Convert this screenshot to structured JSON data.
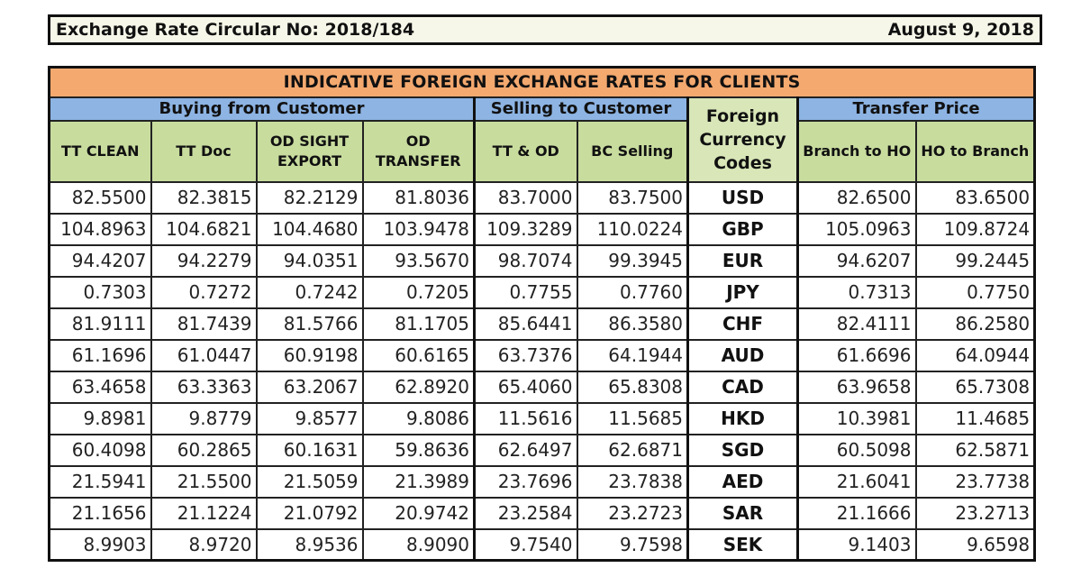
{
  "header": {
    "circular": "Exchange Rate Circular No: 2018/184",
    "date": "August 9, 2018"
  },
  "table": {
    "title": "INDICATIVE FOREIGN EXCHANGE RATES FOR CLIENTS",
    "groups": {
      "buying": "Buying from Customer",
      "selling": "Selling to Customer",
      "codes": "Foreign Currency Codes",
      "transfer": "Transfer Price"
    },
    "columns": {
      "tt_clean": "TT CLEAN",
      "tt_doc": "TT Doc",
      "od_sight_export": "OD SIGHT EXPORT",
      "od_transfer": "OD TRANSFER",
      "tt_od": "TT & OD",
      "bc_selling": "BC Selling",
      "branch_to_ho": "Branch to HO",
      "ho_to_branch": "HO to Branch"
    },
    "rows": [
      {
        "tt_clean": "82.5500",
        "tt_doc": "82.3815",
        "od_sight_export": "82.2129",
        "od_transfer": "81.8036",
        "tt_od": "83.7000",
        "bc_selling": "83.7500",
        "code": "USD",
        "branch_to_ho": "82.6500",
        "ho_to_branch": "83.6500"
      },
      {
        "tt_clean": "104.8963",
        "tt_doc": "104.6821",
        "od_sight_export": "104.4680",
        "od_transfer": "103.9478",
        "tt_od": "109.3289",
        "bc_selling": "110.0224",
        "code": "GBP",
        "branch_to_ho": "105.0963",
        "ho_to_branch": "109.8724"
      },
      {
        "tt_clean": "94.4207",
        "tt_doc": "94.2279",
        "od_sight_export": "94.0351",
        "od_transfer": "93.5670",
        "tt_od": "98.7074",
        "bc_selling": "99.3945",
        "code": "EUR",
        "branch_to_ho": "94.6207",
        "ho_to_branch": "99.2445"
      },
      {
        "tt_clean": "0.7303",
        "tt_doc": "0.7272",
        "od_sight_export": "0.7242",
        "od_transfer": "0.7205",
        "tt_od": "0.7755",
        "bc_selling": "0.7760",
        "code": "JPY",
        "branch_to_ho": "0.7313",
        "ho_to_branch": "0.7750"
      },
      {
        "tt_clean": "81.9111",
        "tt_doc": "81.7439",
        "od_sight_export": "81.5766",
        "od_transfer": "81.1705",
        "tt_od": "85.6441",
        "bc_selling": "86.3580",
        "code": "CHF",
        "branch_to_ho": "82.4111",
        "ho_to_branch": "86.2580"
      },
      {
        "tt_clean": "61.1696",
        "tt_doc": "61.0447",
        "od_sight_export": "60.9198",
        "od_transfer": "60.6165",
        "tt_od": "63.7376",
        "bc_selling": "64.1944",
        "code": "AUD",
        "branch_to_ho": "61.6696",
        "ho_to_branch": "64.0944"
      },
      {
        "tt_clean": "63.4658",
        "tt_doc": "63.3363",
        "od_sight_export": "63.2067",
        "od_transfer": "62.8920",
        "tt_od": "65.4060",
        "bc_selling": "65.8308",
        "code": "CAD",
        "branch_to_ho": "63.9658",
        "ho_to_branch": "65.7308"
      },
      {
        "tt_clean": "9.8981",
        "tt_doc": "9.8779",
        "od_sight_export": "9.8577",
        "od_transfer": "9.8086",
        "tt_od": "11.5616",
        "bc_selling": "11.5685",
        "code": "HKD",
        "branch_to_ho": "10.3981",
        "ho_to_branch": "11.4685"
      },
      {
        "tt_clean": "60.4098",
        "tt_doc": "60.2865",
        "od_sight_export": "60.1631",
        "od_transfer": "59.8636",
        "tt_od": "62.6497",
        "bc_selling": "62.6871",
        "code": "SGD",
        "branch_to_ho": "60.5098",
        "ho_to_branch": "62.5871"
      },
      {
        "tt_clean": "21.5941",
        "tt_doc": "21.5500",
        "od_sight_export": "21.5059",
        "od_transfer": "21.3989",
        "tt_od": "23.7696",
        "bc_selling": "23.7838",
        "code": "AED",
        "branch_to_ho": "21.6041",
        "ho_to_branch": "23.7738"
      },
      {
        "tt_clean": "21.1656",
        "tt_doc": "21.1224",
        "od_sight_export": "21.0792",
        "od_transfer": "20.9742",
        "tt_od": "23.2584",
        "bc_selling": "23.2723",
        "code": "SAR",
        "branch_to_ho": "21.1666",
        "ho_to_branch": "23.2713"
      },
      {
        "tt_clean": "8.9903",
        "tt_doc": "8.9720",
        "od_sight_export": "8.9536",
        "od_transfer": "8.9090",
        "tt_od": "9.7540",
        "bc_selling": "9.7598",
        "code": "SEK",
        "branch_to_ho": "9.1403",
        "ho_to_branch": "9.6598"
      }
    ]
  },
  "colors": {
    "title_bg": "#f4a96f",
    "group_bg": "#8db4e3",
    "column_bg": "#c8dc9e",
    "header_bar_bg": "#f7f7e9"
  }
}
